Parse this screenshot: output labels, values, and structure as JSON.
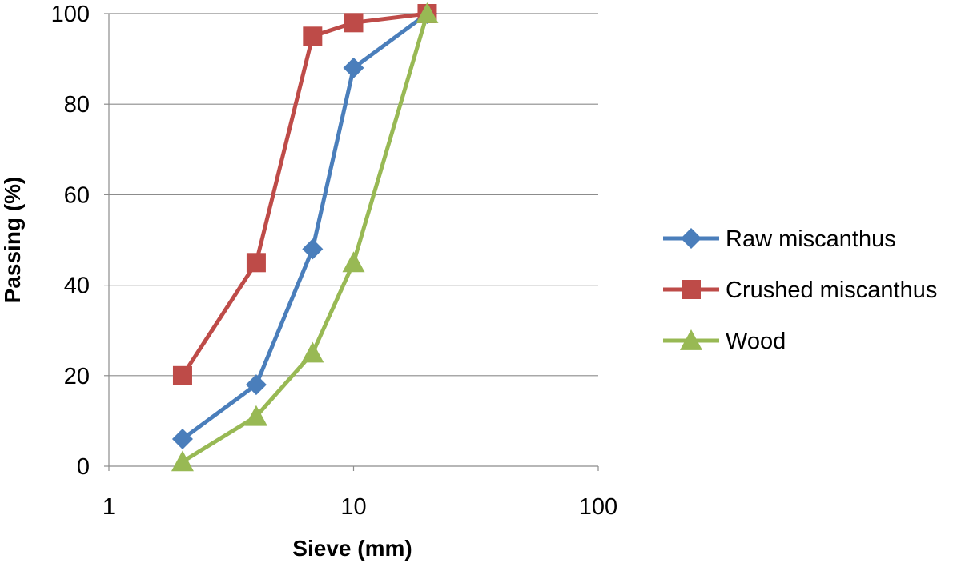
{
  "chart_data": {
    "type": "line",
    "title": "",
    "xlabel": "Sieve (mm)",
    "ylabel": "Passing (%)",
    "x_scale": "log",
    "xlim": [
      1,
      100
    ],
    "ylim": [
      0,
      100
    ],
    "x_ticks": [
      1,
      10,
      100
    ],
    "x_tick_labels": [
      "1",
      "10",
      "100"
    ],
    "y_ticks": [
      0,
      20,
      40,
      60,
      80,
      100
    ],
    "y_tick_labels": [
      "0",
      "20",
      "40",
      "60",
      "80",
      "100"
    ],
    "grid": "horizontal",
    "legend_position": "right",
    "series": [
      {
        "name": "Raw miscanthus",
        "color": "#4a7ebb",
        "marker": "diamond",
        "x": [
          2,
          4,
          6.8,
          10,
          20
        ],
        "y": [
          6,
          18,
          48,
          88,
          100
        ]
      },
      {
        "name": "Crushed miscanthus",
        "color": "#be4b48",
        "marker": "square",
        "x": [
          2,
          4,
          6.8,
          10,
          20
        ],
        "y": [
          20,
          45,
          95,
          98,
          100
        ]
      },
      {
        "name": "Wood",
        "color": "#98b954",
        "marker": "triangle",
        "x": [
          2,
          4,
          6.8,
          10,
          20
        ],
        "y": [
          1,
          11,
          25,
          45,
          100
        ]
      }
    ]
  }
}
